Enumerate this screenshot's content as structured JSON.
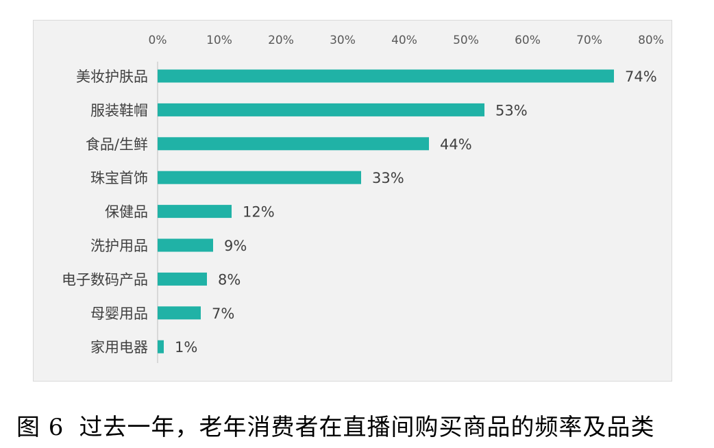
{
  "chart_data": {
    "type": "bar",
    "orientation": "horizontal",
    "categories": [
      "美妆护肤品",
      "服装鞋帽",
      "食品/生鲜",
      "珠宝首饰",
      "保健品",
      "洗护用品",
      "电子数码产品",
      "母婴用品",
      "家用电器"
    ],
    "values": [
      74,
      53,
      44,
      33,
      12,
      9,
      8,
      7,
      1
    ],
    "value_labels": [
      "74%",
      "53%",
      "44%",
      "33%",
      "12%",
      "9%",
      "8%",
      "7%",
      "1%"
    ],
    "x_ticks": [
      "0%",
      "10%",
      "20%",
      "30%",
      "40%",
      "50%",
      "60%",
      "70%",
      "80%"
    ],
    "xlim": [
      0,
      80
    ],
    "x_axis_position": "top",
    "grid": false,
    "bar_color": "#20b2a6",
    "background_color": "#f2f2f2"
  },
  "caption": {
    "figure_number": "图 6",
    "text": "过去一年，老年消费者在直播间购买商品的频率及品类"
  }
}
